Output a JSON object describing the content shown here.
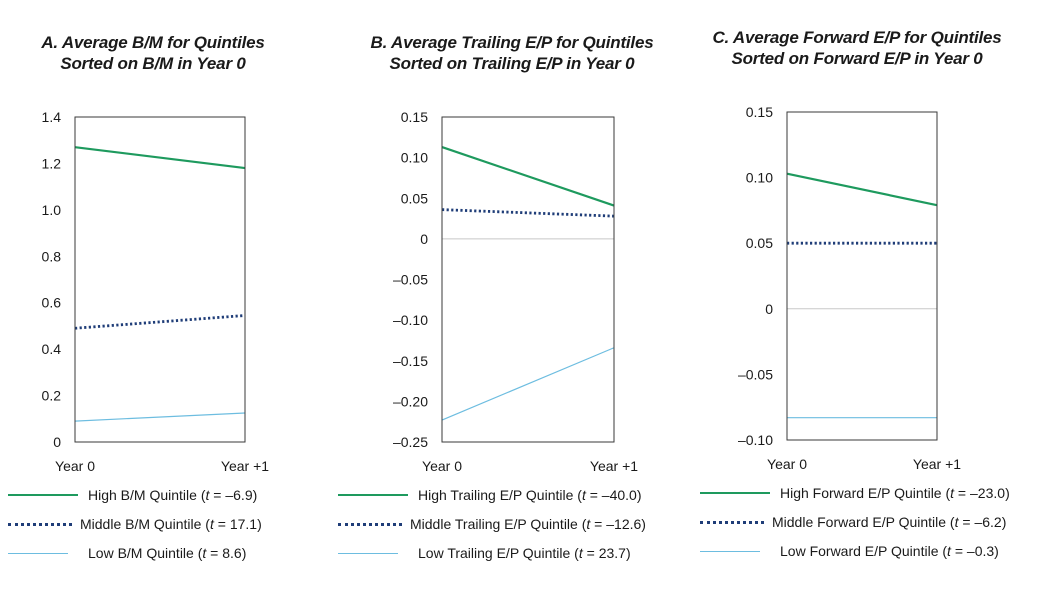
{
  "chart_data": [
    {
      "type": "line",
      "title_lines": [
        "A. Average B/M for Quintiles",
        "Sorted on B/M in Year 0"
      ],
      "categories": [
        "Year 0",
        "Year +1"
      ],
      "ylim": [
        0,
        1.4
      ],
      "yticks": [
        0,
        0.2,
        0.4,
        0.6,
        0.8,
        1.0,
        1.2,
        1.4
      ],
      "ytick_labels": [
        "0",
        "0.2",
        "0.4",
        "0.6",
        "0.8",
        "1.0",
        "1.2",
        "1.4"
      ],
      "zero_line": false,
      "series": [
        {
          "name": "High B/M Quintile",
          "t_stat": "–6.9",
          "values": [
            1.27,
            1.18
          ],
          "style": "solid",
          "color": "#1e9a5e"
        },
        {
          "name": "Middle B/M Quintile",
          "t_stat": "17.1",
          "values": [
            0.49,
            0.545
          ],
          "style": "dotted",
          "color": "#1f3d78"
        },
        {
          "name": "Low B/M Quintile",
          "t_stat": "8.6",
          "values": [
            0.09,
            0.125
          ],
          "style": "thin",
          "color": "#6dbde0"
        }
      ]
    },
    {
      "type": "line",
      "title_lines": [
        "B. Average Trailing E/P for Quintiles",
        "Sorted on Trailing E/P in Year 0"
      ],
      "categories": [
        "Year 0",
        "Year +1"
      ],
      "ylim": [
        -0.25,
        0.15
      ],
      "yticks": [
        -0.25,
        -0.2,
        -0.15,
        -0.1,
        -0.05,
        0,
        0.05,
        0.1,
        0.15
      ],
      "ytick_labels": [
        "–0.25",
        "–0.20",
        "–0.15",
        "–0.10",
        "–0.05",
        "0",
        "0.05",
        "0.10",
        "0.15"
      ],
      "zero_line": true,
      "series": [
        {
          "name": "High Trailing E/P Quintile",
          "t_stat": "–40.0",
          "values": [
            0.113,
            0.041
          ],
          "style": "solid",
          "color": "#1e9a5e"
        },
        {
          "name": "Middle Trailing E/P Quintile",
          "t_stat": "–12.6",
          "values": [
            0.036,
            0.028
          ],
          "style": "dotted",
          "color": "#1f3d78"
        },
        {
          "name": "Low Trailing E/P Quintile",
          "t_stat": "23.7",
          "values": [
            -0.223,
            -0.134
          ],
          "style": "thin",
          "color": "#6dbde0"
        }
      ]
    },
    {
      "type": "line",
      "title_lines": [
        "C. Average Forward E/P for Quintiles",
        "Sorted on Forward E/P in Year 0"
      ],
      "categories": [
        "Year 0",
        "Year +1"
      ],
      "ylim": [
        -0.1,
        0.15
      ],
      "yticks": [
        -0.1,
        -0.05,
        0,
        0.05,
        0.1,
        0.15
      ],
      "ytick_labels": [
        "–0.10",
        "–0.05",
        "0",
        "0.05",
        "0.10",
        "0.15"
      ],
      "zero_line": true,
      "series": [
        {
          "name": "High Forward E/P Quintile",
          "t_stat": "–23.0",
          "values": [
            0.103,
            0.079
          ],
          "style": "solid",
          "color": "#1e9a5e"
        },
        {
          "name": "Middle Forward E/P Quintile",
          "t_stat": "–6.2",
          "values": [
            0.05,
            0.05
          ],
          "style": "dotted",
          "color": "#1f3d78"
        },
        {
          "name": "Low Forward E/P Quintile",
          "t_stat": "–0.3",
          "values": [
            -0.083,
            -0.083
          ],
          "style": "thin",
          "color": "#6dbde0"
        }
      ]
    }
  ]
}
